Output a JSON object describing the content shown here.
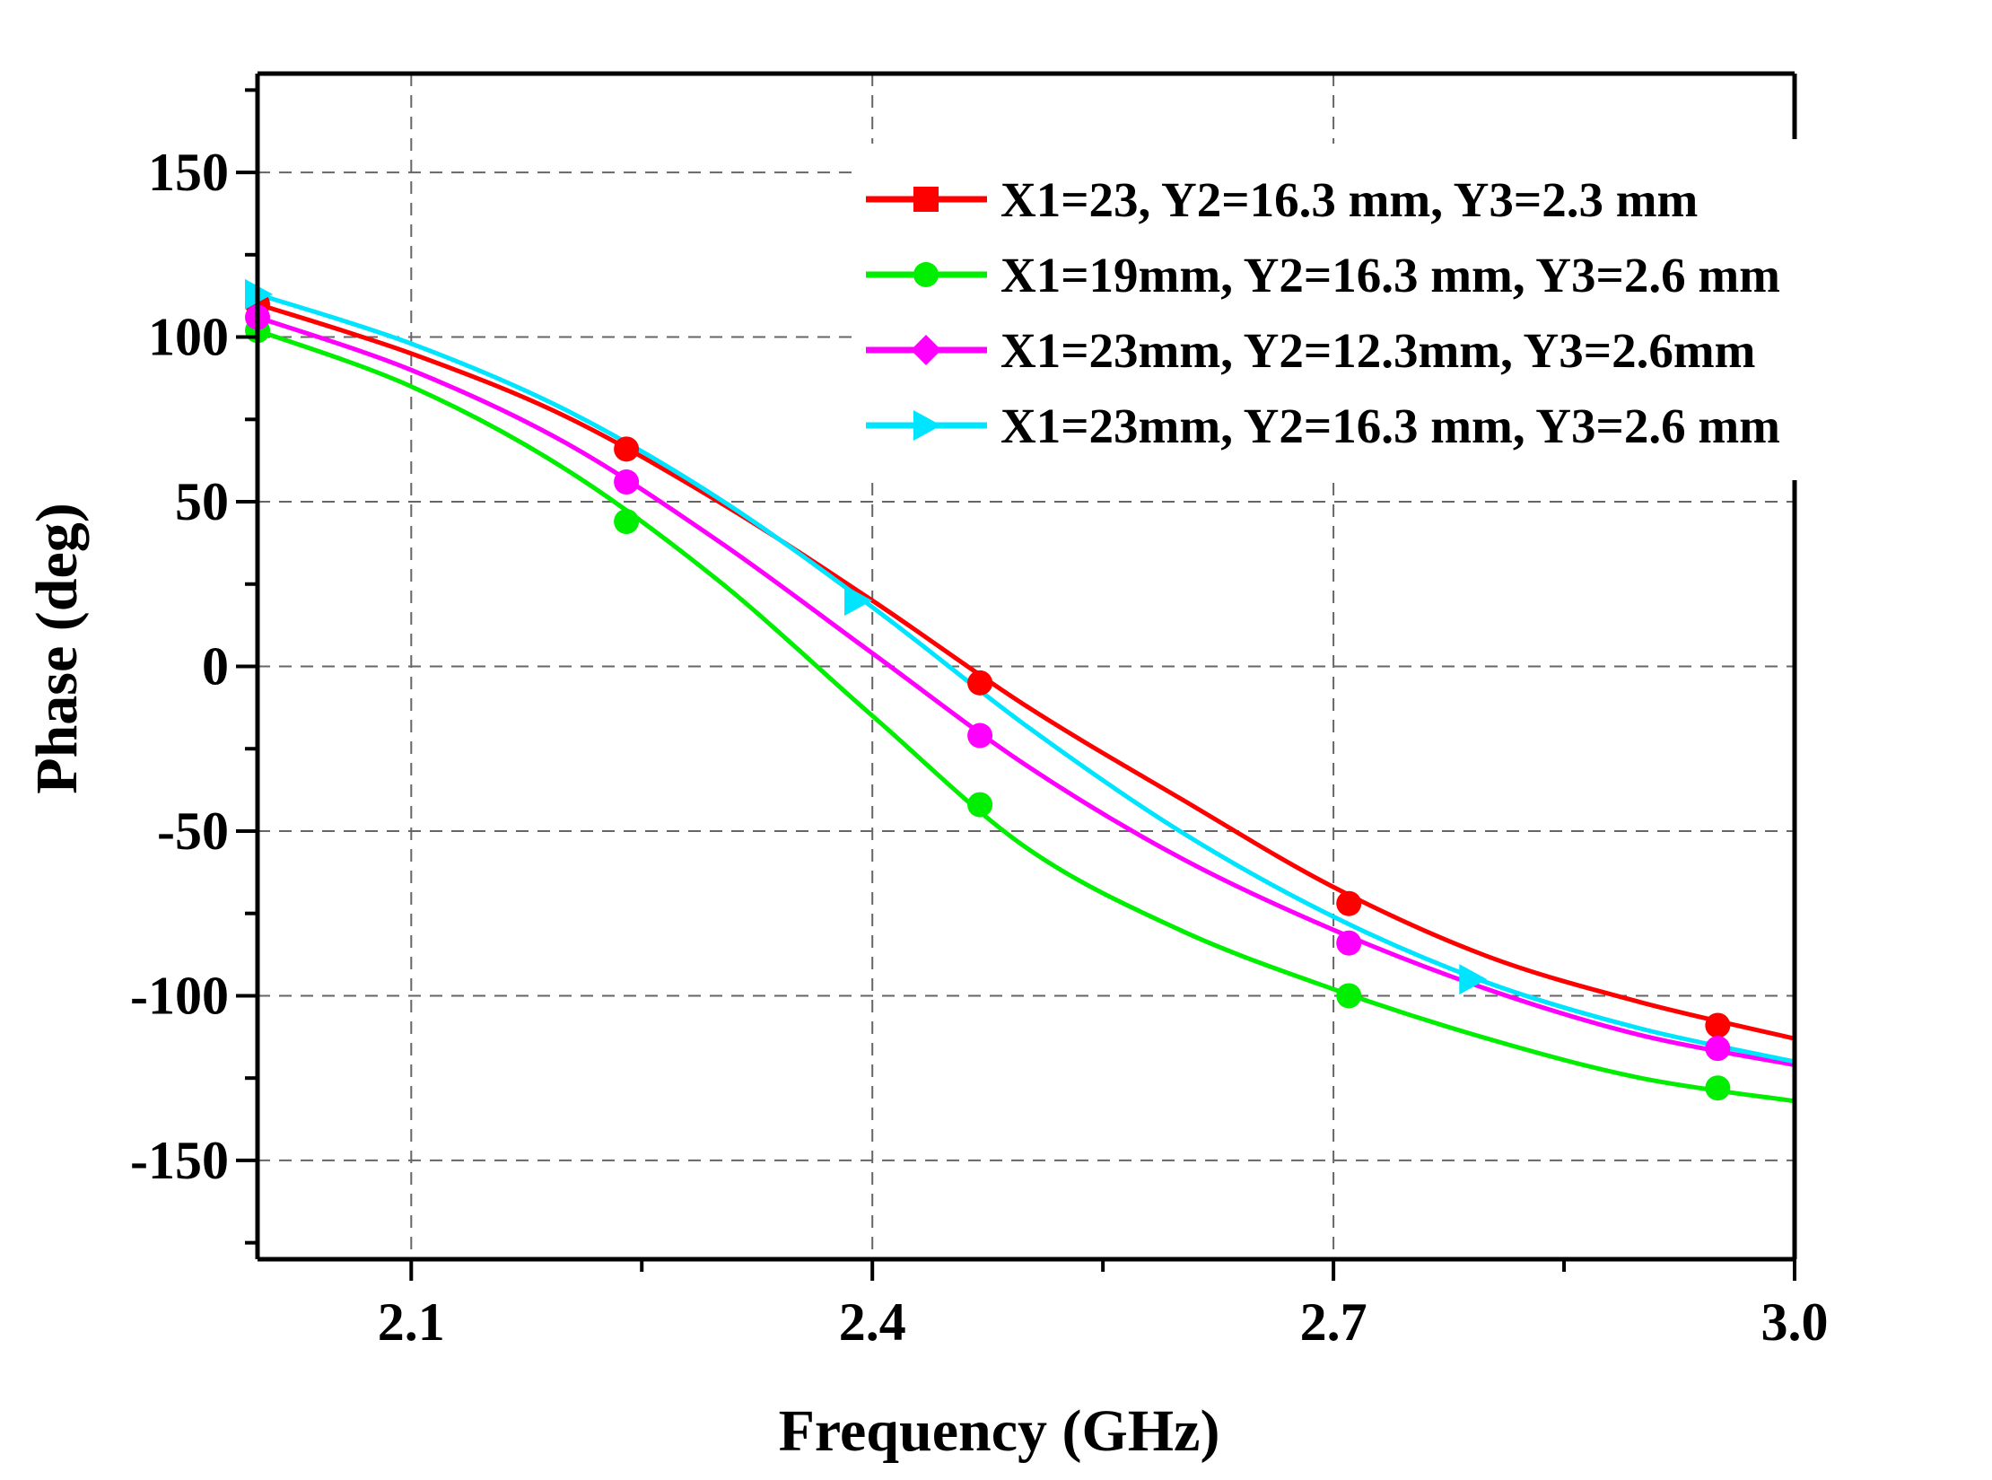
{
  "chart_data": {
    "type": "line",
    "xlabel": "Frequency (GHz)",
    "ylabel": "Phase (deg)",
    "xlim": [
      2.0,
      3.0
    ],
    "ylim": [
      -180,
      180
    ],
    "x_ticks": [
      2.1,
      2.4,
      2.7,
      3.0
    ],
    "x_tick_labels": [
      "2.1",
      "2.4",
      "2.7",
      "3.0"
    ],
    "y_ticks": [
      150,
      100,
      50,
      0,
      -50,
      -100,
      -150
    ],
    "y_tick_labels": [
      "150",
      "100",
      "50",
      "0",
      "-50",
      "-100",
      "-150"
    ],
    "grid": true,
    "legend_position": "top-right",
    "series": [
      {
        "name": "X1=23, Y2=16.3 mm, Y3=2.3 mm",
        "color": "#ff0000",
        "marker": "square",
        "x": [
          2.0,
          2.1,
          2.2,
          2.3,
          2.4,
          2.5,
          2.6,
          2.7,
          2.8,
          2.9,
          3.0
        ],
        "y": [
          110,
          95,
          76,
          50,
          20,
          -12,
          -40,
          -67,
          -88,
          -102,
          -113
        ],
        "marker_x": [
          2.0,
          2.24,
          2.47,
          2.71,
          2.95
        ],
        "marker_y": [
          110,
          66,
          -5,
          -72,
          -109
        ]
      },
      {
        "name": "X1=19mm, Y2=16.3 mm, Y3=2.6 mm",
        "color": "#00ee00",
        "marker": "circle",
        "x": [
          2.0,
          2.1,
          2.2,
          2.3,
          2.4,
          2.5,
          2.6,
          2.7,
          2.8,
          2.9,
          3.0
        ],
        "y": [
          102,
          85,
          60,
          26,
          -15,
          -55,
          -80,
          -98,
          -113,
          -125,
          -132
        ],
        "marker_x": [
          2.0,
          2.24,
          2.47,
          2.71,
          2.95
        ],
        "marker_y": [
          102,
          44,
          -42,
          -100,
          -128
        ]
      },
      {
        "name": "X1=23mm, Y2=12.3mm, Y3=2.6mm",
        "color": "#ff00ff",
        "marker": "diamond",
        "x": [
          2.0,
          2.1,
          2.2,
          2.3,
          2.4,
          2.5,
          2.6,
          2.7,
          2.8,
          2.9,
          3.0
        ],
        "y": [
          106,
          90,
          68,
          38,
          4,
          -30,
          -58,
          -80,
          -98,
          -112,
          -121
        ],
        "marker_x": [
          2.0,
          2.24,
          2.47,
          2.71,
          2.95
        ],
        "marker_y": [
          106,
          56,
          -21,
          -84,
          -116
        ]
      },
      {
        "name": "X1=23mm, Y2=16.3 mm, Y3=2.6 mm",
        "color": "#00e5ff",
        "marker": "triangle-right",
        "x": [
          2.0,
          2.1,
          2.2,
          2.3,
          2.4,
          2.5,
          2.6,
          2.7,
          2.8,
          2.9,
          3.0
        ],
        "y": [
          113,
          98,
          78,
          51,
          18,
          -18,
          -50,
          -76,
          -96,
          -110,
          -120
        ],
        "marker_x": [
          2.0,
          2.39,
          2.79
        ],
        "marker_y": [
          113,
          20,
          -95
        ]
      }
    ]
  }
}
